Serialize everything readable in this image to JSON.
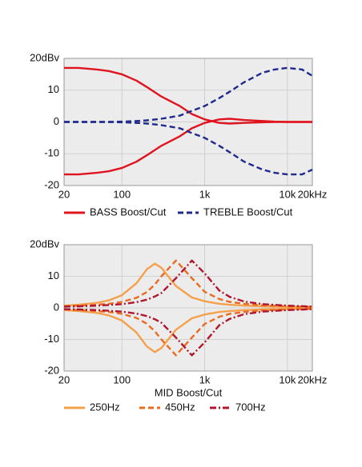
{
  "chart_data": [
    {
      "type": "line",
      "xscale": "log",
      "grid": true,
      "x": [
        20,
        30,
        50,
        70,
        100,
        150,
        200,
        300,
        500,
        700,
        1000,
        1500,
        2000,
        3000,
        5000,
        7000,
        10000,
        15000,
        20000
      ],
      "xlim": [
        20,
        20000
      ],
      "ylim": [
        -20,
        20
      ],
      "xticks": [
        20,
        100,
        {
          "value": 1000,
          "label": "1k"
        },
        {
          "value": 10000,
          "label": "10k"
        },
        {
          "value": 20000,
          "label": "20kHz"
        }
      ],
      "yticks": [
        -20,
        -10,
        0,
        10,
        {
          "value": 20,
          "label": "20dBv"
        }
      ],
      "series": [
        {
          "name": "BASS Boost/Cut",
          "color": "#e0141e",
          "style": "solid",
          "boost": [
            17,
            17,
            16.5,
            16,
            15,
            13,
            11,
            8,
            5,
            2.5,
            0.8,
            -0.3,
            -0.5,
            -0.3,
            -0.1,
            0,
            0,
            0,
            0
          ],
          "cut": [
            -16.5,
            -16.5,
            -16,
            -15.5,
            -14.5,
            -12.5,
            -10.5,
            -7.5,
            -4.5,
            -2,
            -0.3,
            0.8,
            1,
            0.6,
            0.3,
            0.1,
            0,
            0,
            0
          ]
        },
        {
          "name": "TREBLE Boost/Cut",
          "color": "#1f2a8c",
          "style": "dashed",
          "boost": [
            0,
            0,
            0,
            0,
            0.1,
            0.3,
            0.5,
            1,
            2,
            3.5,
            5,
            7.5,
            9.5,
            12.5,
            15.5,
            16.5,
            17,
            16.5,
            14.5
          ],
          "cut": [
            0,
            0,
            0,
            0,
            -0.1,
            -0.3,
            -0.5,
            -1,
            -2,
            -3.5,
            -5,
            -7.5,
            -9.5,
            -12.5,
            -15,
            -16,
            -16.5,
            -16.5,
            -15
          ]
        }
      ]
    },
    {
      "type": "line",
      "xscale": "log",
      "grid": true,
      "xlabel": "MID Boost/Cut",
      "x": [
        20,
        30,
        50,
        70,
        100,
        150,
        200,
        250,
        300,
        450,
        700,
        1000,
        1500,
        2000,
        3000,
        5000,
        10000,
        20000
      ],
      "xlim": [
        20,
        20000
      ],
      "ylim": [
        -20,
        20
      ],
      "xticks": [
        20,
        100,
        {
          "value": 1000,
          "label": "1k"
        },
        {
          "value": 10000,
          "label": "10k"
        },
        {
          "value": 20000,
          "label": "20kHz"
        }
      ],
      "yticks": [
        -20,
        -10,
        0,
        10,
        {
          "value": 20,
          "label": "20dBv"
        }
      ],
      "series": [
        {
          "name": "250Hz",
          "color": "#f5a04a",
          "style": "solid",
          "boost": [
            0.7,
            1,
            1.6,
            2.4,
            4,
            7.8,
            12.2,
            14,
            12.7,
            6.9,
            3.3,
            2.1,
            1.3,
            1,
            0.7,
            0.5,
            0.3,
            0.2
          ],
          "cut": [
            -0.7,
            -1,
            -1.6,
            -2.4,
            -4,
            -7.8,
            -12.2,
            -14,
            -12.7,
            -6.9,
            -3.3,
            -2.1,
            -1.3,
            -1,
            -0.7,
            -0.5,
            -0.3,
            -0.2
          ]
        },
        {
          "name": "450Hz",
          "color": "#e86b1f",
          "style": "dashed",
          "boost": [
            0.5,
            0.7,
            1,
            1.3,
            1.9,
            3.2,
            5,
            7.4,
            10,
            15,
            9.4,
            5.1,
            2.8,
            1.9,
            1.3,
            0.8,
            0.5,
            0.3
          ],
          "cut": [
            -0.5,
            -0.7,
            -1,
            -1.3,
            -1.9,
            -3.2,
            -5,
            -7.4,
            -10,
            -15,
            -9.4,
            -5.1,
            -2.8,
            -1.9,
            -1.3,
            -0.8,
            -0.5,
            -0.3
          ]
        },
        {
          "name": "700Hz",
          "color": "#b0162e",
          "style": "dashdot",
          "boost": [
            0.4,
            0.5,
            0.7,
            0.9,
            1.2,
            1.8,
            2.6,
            3.6,
            4.7,
            9.4,
            15,
            10.9,
            5.5,
            3.5,
            2,
            1.2,
            0.7,
            0.4
          ],
          "cut": [
            -0.4,
            -0.5,
            -0.7,
            -0.9,
            -1.2,
            -1.8,
            -2.6,
            -3.6,
            -4.7,
            -9.4,
            -15,
            -10.9,
            -5.5,
            -3.5,
            -2,
            -1.2,
            -0.7,
            -0.4
          ]
        }
      ]
    }
  ]
}
